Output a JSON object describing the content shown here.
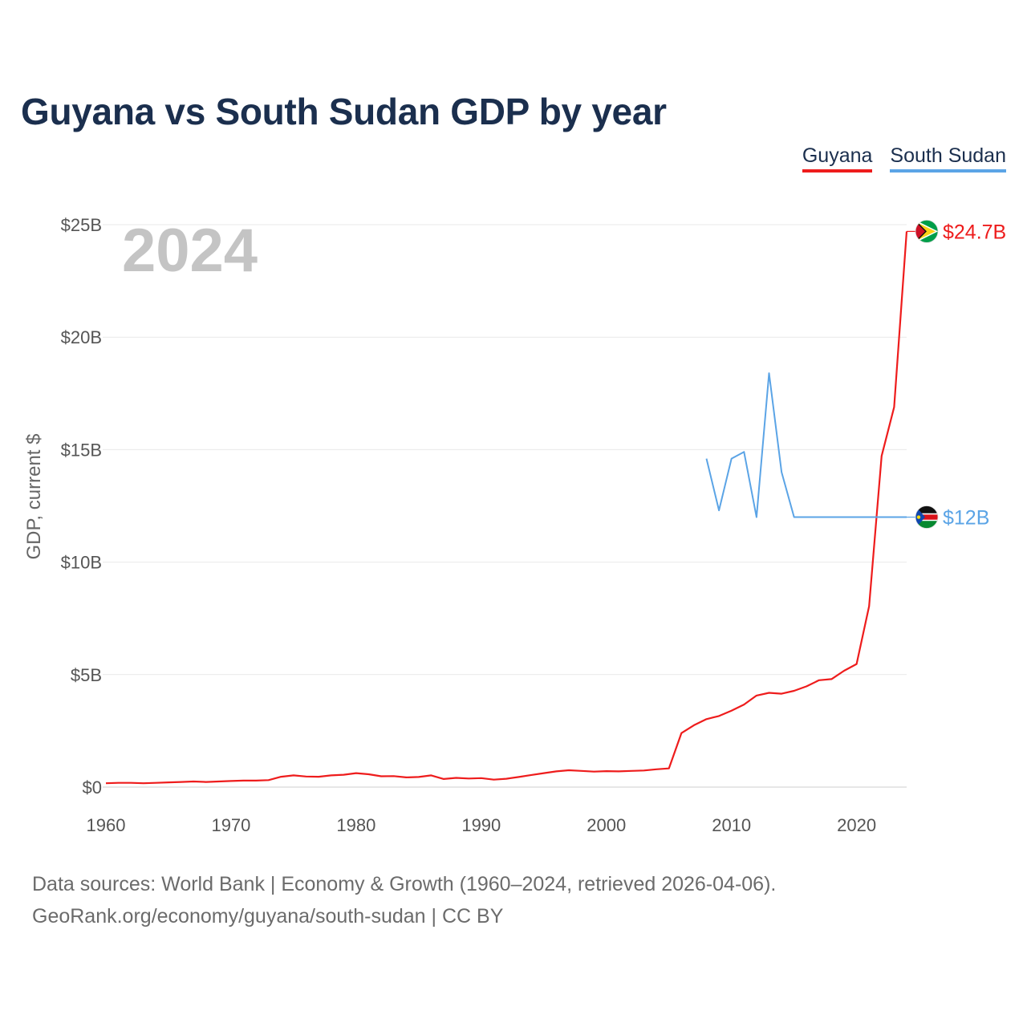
{
  "title": "Guyana vs South Sudan GDP by year",
  "legend": [
    {
      "name": "Guyana",
      "color": "#ee1c1c"
    },
    {
      "name": "South Sudan",
      "color": "#5ba4e6"
    }
  ],
  "footer": {
    "line1": "Data sources: World Bank | Economy & Growth (1960–2024, retrieved 2026-04-06).",
    "line2": "GeoRank.org/economy/guyana/south-sudan | CC BY"
  },
  "chart_data": {
    "type": "line",
    "title": "Guyana vs South Sudan GDP by year",
    "xlabel": "",
    "ylabel": "GDP, current $",
    "xlim": [
      1960,
      2024
    ],
    "ylim": [
      0,
      25
    ],
    "y_unit": "billions USD",
    "x_ticks": [
      1960,
      1970,
      1980,
      1990,
      2000,
      2010,
      2020
    ],
    "x_tick_labels": [
      "1960",
      "1970",
      "1980",
      "1990",
      "2000",
      "2010",
      "2020"
    ],
    "y_ticks": [
      0,
      5,
      10,
      15,
      20,
      25
    ],
    "y_tick_labels": [
      "$0",
      "$5B",
      "$10B",
      "$15B",
      "$20B",
      "$25B"
    ],
    "grid": true,
    "legend_position": "top-right",
    "current_year": "2024",
    "series": [
      {
        "name": "Guyana",
        "color": "#ee1c1c",
        "end_label": "$24.7B",
        "x": [
          1960,
          1961,
          1962,
          1963,
          1964,
          1965,
          1966,
          1967,
          1968,
          1969,
          1970,
          1971,
          1972,
          1973,
          1974,
          1975,
          1976,
          1977,
          1978,
          1979,
          1980,
          1981,
          1982,
          1983,
          1984,
          1985,
          1986,
          1987,
          1988,
          1989,
          1990,
          1991,
          1992,
          1993,
          1994,
          1995,
          1996,
          1997,
          1998,
          1999,
          2000,
          2001,
          2002,
          2003,
          2004,
          2005,
          2006,
          2007,
          2008,
          2009,
          2010,
          2011,
          2012,
          2013,
          2014,
          2015,
          2016,
          2017,
          2018,
          2019,
          2020,
          2021,
          2022,
          2023,
          2024
        ],
        "values": [
          0.17,
          0.19,
          0.19,
          0.17,
          0.19,
          0.21,
          0.23,
          0.25,
          0.23,
          0.25,
          0.27,
          0.29,
          0.29,
          0.31,
          0.46,
          0.52,
          0.47,
          0.46,
          0.52,
          0.55,
          0.62,
          0.57,
          0.48,
          0.49,
          0.43,
          0.45,
          0.52,
          0.36,
          0.41,
          0.38,
          0.4,
          0.33,
          0.37,
          0.45,
          0.54,
          0.62,
          0.7,
          0.75,
          0.72,
          0.69,
          0.71,
          0.7,
          0.72,
          0.74,
          0.79,
          0.83,
          2.4,
          2.75,
          3.02,
          3.16,
          3.4,
          3.67,
          4.07,
          4.19,
          4.15,
          4.28,
          4.48,
          4.75,
          4.8,
          5.17,
          5.47,
          8.04,
          14.72,
          16.89,
          24.7
        ]
      },
      {
        "name": "South Sudan",
        "color": "#5ba4e6",
        "end_label": "$12B",
        "x": [
          2008,
          2009,
          2010,
          2011,
          2012,
          2013,
          2014,
          2015,
          2016,
          2017,
          2018,
          2019,
          2020,
          2021,
          2022,
          2023,
          2024
        ],
        "values": [
          14.6,
          12.3,
          14.6,
          14.9,
          12.0,
          18.4,
          14.0,
          12.0,
          12.0,
          12.0,
          12.0,
          12.0,
          12.0,
          12.0,
          12.0,
          12.0,
          12.0
        ]
      }
    ]
  }
}
